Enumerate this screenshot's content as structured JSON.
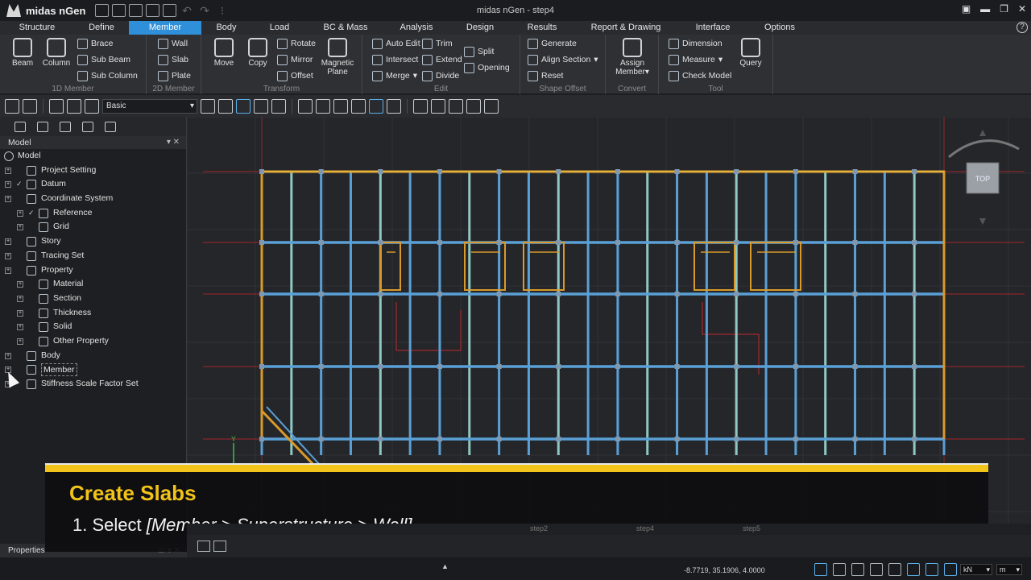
{
  "app": {
    "name": "midas nGen",
    "window_title": "midas nGen - step4"
  },
  "menu": {
    "tabs": [
      "Structure",
      "Define",
      "Member",
      "Body",
      "Load",
      "BC & Mass",
      "Analysis",
      "Design",
      "Results",
      "Report & Drawing",
      "Interface",
      "Options"
    ],
    "active": "Member",
    "help": "?"
  },
  "ribbon": {
    "member1d": {
      "label": "1D Member",
      "beam": "Beam",
      "column": "Column",
      "brace": "Brace",
      "sub_beam": "Sub Beam",
      "sub_column": "Sub Column"
    },
    "member2d": {
      "label": "2D Member",
      "wall": "Wall",
      "slab": "Slab",
      "plate": "Plate"
    },
    "transform": {
      "label": "Transform",
      "move": "Move",
      "copy": "Copy",
      "rotate": "Rotate",
      "mirror": "Mirror",
      "offset": "Offset",
      "magnetic": "Magnetic",
      "plane": "Plane"
    },
    "edit": {
      "label": "Edit",
      "auto_edit": "Auto Edit",
      "intersect": "Intersect",
      "merge": "Merge",
      "trim": "Trim",
      "extend": "Extend",
      "divide": "Divide",
      "split": "Split",
      "opening": "Opening"
    },
    "shape_offset": {
      "label": "Shape Offset",
      "generate": "Generate",
      "align_section": "Align Section",
      "reset": "Reset"
    },
    "convert": {
      "label": "Convert",
      "assign": "Assign",
      "member": "Member"
    },
    "tool": {
      "label": "Tool",
      "dimension": "Dimension",
      "measure": "Measure",
      "check_model": "Check Model",
      "query": "Query"
    }
  },
  "toolbar": {
    "mode_select": "Basic"
  },
  "panel": {
    "title": "Model",
    "root": "Model",
    "tree": [
      {
        "label": "Project Setting",
        "level": 0
      },
      {
        "label": "Datum",
        "level": 0,
        "checked": true
      },
      {
        "label": "Coordinate System",
        "level": 0
      },
      {
        "label": "Reference",
        "level": 1,
        "checked": true
      },
      {
        "label": "Grid",
        "level": 1
      },
      {
        "label": "Story",
        "level": 0
      },
      {
        "label": "Tracing Set",
        "level": 0
      },
      {
        "label": "Property",
        "level": 0
      },
      {
        "label": "Material",
        "level": 1
      },
      {
        "label": "Section",
        "level": 1
      },
      {
        "label": "Thickness",
        "level": 1
      },
      {
        "label": "Solid",
        "level": 1
      },
      {
        "label": "Other Property",
        "level": 1
      },
      {
        "label": "Body",
        "level": 0
      },
      {
        "label": "Member",
        "level": 0,
        "selected": true
      },
      {
        "label": "Stiffness Scale Factor Set",
        "level": 0
      }
    ],
    "properties_title": "Properties"
  },
  "viewport": {
    "view_cube_label": "TOP",
    "axis_label": "Y",
    "view_tabs": [
      "step2",
      "step4",
      "step5"
    ]
  },
  "caption": {
    "title": "Create Slabs",
    "step_number": "1. Select ",
    "step_text": "[Member > Superstructure > Wall]."
  },
  "status": {
    "coordinates": "-8.7719, 35.1906, 4.0000",
    "force_unit": "kN",
    "length_unit": "m"
  },
  "colors": {
    "accent": "#2f8fd8",
    "caption_yellow": "#f2c318",
    "beam_blue": "#5aa0d6",
    "edge_orange": "#d99a2b",
    "grid_red": "#c0282c"
  }
}
